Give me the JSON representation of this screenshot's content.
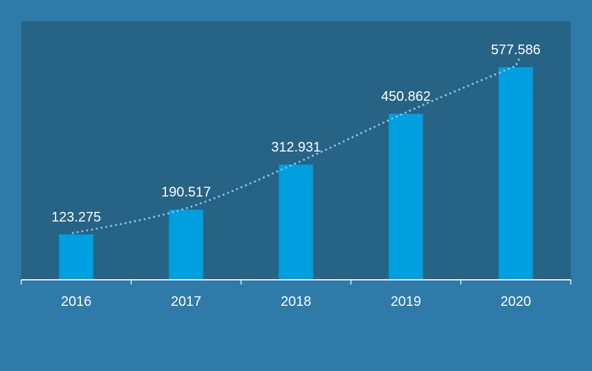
{
  "chart_data": {
    "type": "bar",
    "categories": [
      "2016",
      "2017",
      "2018",
      "2019",
      "2020"
    ],
    "values": [
      123.275,
      190.517,
      312.931,
      450.862,
      577.586
    ],
    "data_labels": [
      "123.275",
      "190.517",
      "312.931",
      "450.862",
      "577.586"
    ],
    "title": "",
    "xlabel": "",
    "ylabel": "",
    "ylim": [
      0,
      700
    ],
    "grid": false,
    "legend": "none",
    "trendline": "dotted",
    "y_axis_visible": false
  },
  "colors": {
    "page_background": "#2e7aa8",
    "plot_background": "#276385",
    "bar": "#009fdf",
    "trendline": "#7fc9ec",
    "axis": "#e8eef3",
    "text": "#ffffff"
  }
}
